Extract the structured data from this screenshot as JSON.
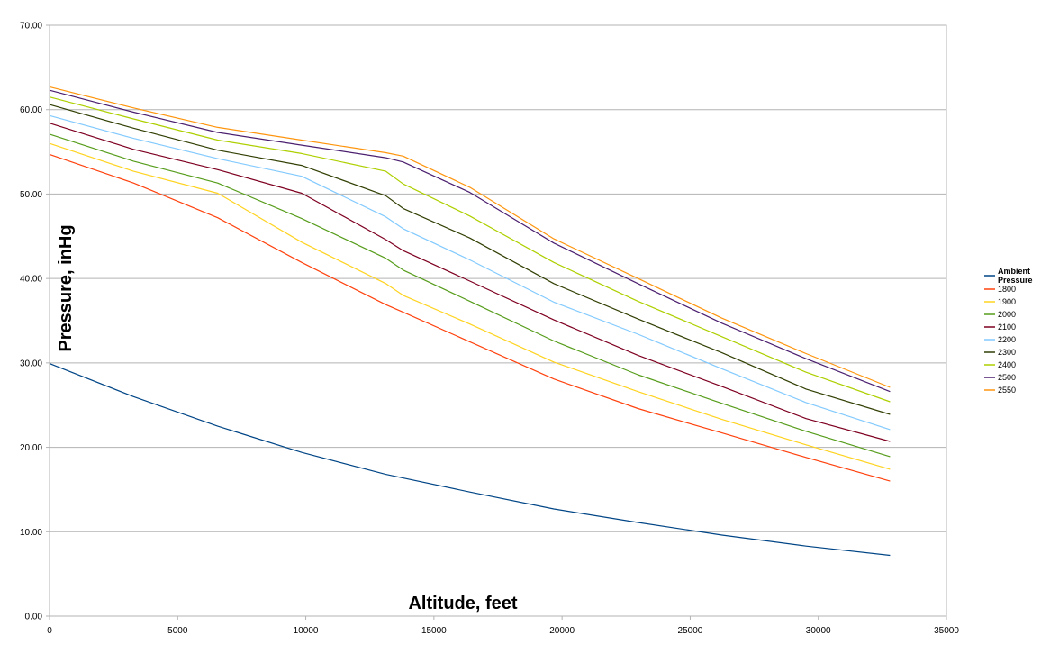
{
  "chart_data": {
    "type": "line",
    "xlabel": "Altitude, feet",
    "ylabel": "Pressure, inHg",
    "xlim": [
      0,
      35000
    ],
    "ylim": [
      0,
      70
    ],
    "x_ticks": [
      "0",
      "5000",
      "10000",
      "15000",
      "20000",
      "25000",
      "30000",
      "35000"
    ],
    "y_ticks": [
      "0.00",
      "10.00",
      "20.00",
      "30.00",
      "40.00",
      "50.00",
      "60.00",
      "70.00"
    ],
    "grid": "horizontal",
    "legend": "right",
    "series": [
      {
        "name": "Ambient Pressure",
        "color": "#004586",
        "x": [
          0,
          3280,
          6560,
          9840,
          13120,
          16400,
          19680,
          22960,
          26240,
          29520,
          32800
        ],
        "y": [
          29.92,
          26.0,
          22.5,
          19.4,
          16.8,
          14.7,
          12.7,
          11.1,
          9.6,
          8.3,
          7.2
        ]
      },
      {
        "name": "1800",
        "color": "#ff420e",
        "x": [
          0,
          3280,
          6560,
          9840,
          13120,
          13800,
          16400,
          19680,
          22960,
          26240,
          29520,
          32800
        ],
        "y": [
          54.7,
          51.3,
          47.2,
          41.9,
          36.9,
          36.0,
          32.5,
          28.1,
          24.6,
          21.7,
          18.8,
          16.0
        ]
      },
      {
        "name": "1900",
        "color": "#ffd320",
        "x": [
          0,
          3280,
          6560,
          9840,
          13120,
          13800,
          16400,
          19680,
          22960,
          26240,
          29520,
          32800
        ],
        "y": [
          56.0,
          52.7,
          50.1,
          44.3,
          39.4,
          38.0,
          34.6,
          30.1,
          26.6,
          23.3,
          20.3,
          17.4
        ]
      },
      {
        "name": "2000",
        "color": "#579d1c",
        "x": [
          0,
          3280,
          6560,
          9840,
          13120,
          13800,
          16400,
          19680,
          22960,
          26240,
          29520,
          32800
        ],
        "y": [
          57.1,
          53.9,
          51.3,
          47.1,
          42.4,
          41.0,
          37.3,
          32.6,
          28.6,
          25.2,
          21.9,
          18.9
        ]
      },
      {
        "name": "2100",
        "color": "#7e0021",
        "x": [
          0,
          3280,
          6560,
          9840,
          13120,
          13800,
          16400,
          19680,
          22960,
          26240,
          29520,
          32800
        ],
        "y": [
          58.4,
          55.3,
          52.9,
          50.1,
          44.6,
          43.3,
          39.7,
          35.1,
          30.9,
          27.2,
          23.4,
          20.7
        ]
      },
      {
        "name": "2200",
        "color": "#83caff",
        "x": [
          0,
          3280,
          6560,
          9840,
          13120,
          13800,
          16400,
          19680,
          22960,
          26240,
          29520,
          32800
        ],
        "y": [
          59.3,
          56.6,
          54.2,
          52.1,
          47.3,
          45.9,
          42.2,
          37.2,
          33.4,
          29.3,
          25.3,
          22.1
        ]
      },
      {
        "name": "2300",
        "color": "#314004",
        "x": [
          0,
          3280,
          6560,
          9840,
          13120,
          13800,
          16400,
          19680,
          22960,
          26240,
          29520,
          32800
        ],
        "y": [
          60.6,
          57.8,
          55.2,
          53.4,
          49.8,
          48.3,
          44.8,
          39.4,
          35.2,
          31.2,
          26.9,
          23.9
        ]
      },
      {
        "name": "2400",
        "color": "#aecf00",
        "x": [
          0,
          3280,
          6560,
          9840,
          13120,
          13800,
          16400,
          19680,
          22960,
          26240,
          29520,
          32800
        ],
        "y": [
          61.5,
          58.9,
          56.4,
          54.8,
          52.7,
          51.2,
          47.4,
          41.9,
          37.3,
          33.1,
          28.9,
          25.4
        ]
      },
      {
        "name": "2500",
        "color": "#4b1f6f",
        "x": [
          0,
          3280,
          6560,
          9840,
          13120,
          13800,
          16400,
          19680,
          22960,
          26240,
          29520,
          32800
        ],
        "y": [
          62.3,
          59.7,
          57.3,
          55.8,
          54.3,
          53.8,
          50.2,
          44.2,
          39.4,
          34.7,
          30.5,
          26.6
        ]
      },
      {
        "name": "2550",
        "color": "#ff950e",
        "x": [
          0,
          3280,
          6560,
          9840,
          13120,
          13800,
          16400,
          19680,
          22960,
          26240,
          29520,
          32800
        ],
        "y": [
          62.7,
          60.2,
          57.9,
          56.4,
          54.9,
          54.5,
          50.8,
          44.7,
          40.0,
          35.3,
          31.1,
          27.1
        ]
      }
    ]
  }
}
